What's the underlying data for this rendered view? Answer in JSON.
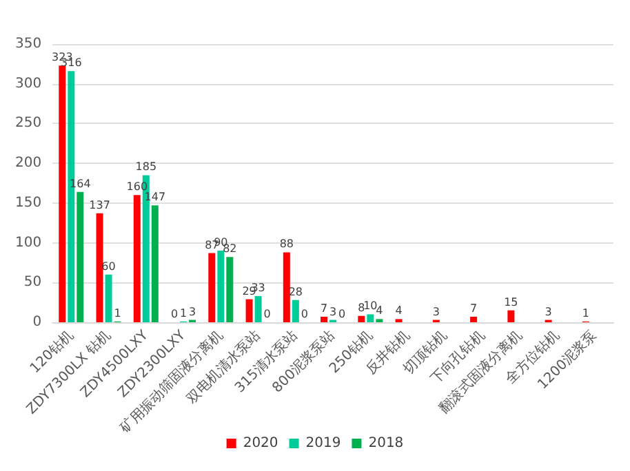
{
  "chart_data": {
    "type": "bar",
    "categories": [
      "120钻机",
      "ZDY7300LX 钻机",
      "ZDY4500LXY",
      "ZDY2300LXY",
      "矿用振动筛固液分离机",
      "双电机清水泵站",
      "315清水泵站",
      "800泥浆泵站",
      "250钻机",
      "反井钻机",
      "切顶钻机",
      "下向孔钻机",
      "翻滚式固液分离机",
      "全方位钻机",
      "1200泥浆泵"
    ],
    "series": [
      {
        "name": "2020",
        "color": "#ff0000",
        "values": [
          323,
          137,
          160,
          0,
          87,
          29,
          88,
          7,
          8,
          4,
          3,
          7,
          15,
          3,
          1
        ]
      },
      {
        "name": "2019",
        "color": "#00cc99",
        "values": [
          316,
          60,
          185,
          1,
          90,
          33,
          28,
          3,
          10,
          null,
          null,
          null,
          null,
          null,
          null
        ]
      },
      {
        "name": "2018",
        "color": "#00b050",
        "values": [
          164,
          1,
          147,
          3,
          82,
          0,
          0,
          0,
          4,
          null,
          null,
          null,
          null,
          null,
          null
        ]
      }
    ],
    "ylim": [
      0,
      350
    ],
    "yticks": [
      0,
      50,
      100,
      150,
      200,
      250,
      300,
      350
    ],
    "grid": "y",
    "legend": "bottom",
    "data_labels": true
  }
}
